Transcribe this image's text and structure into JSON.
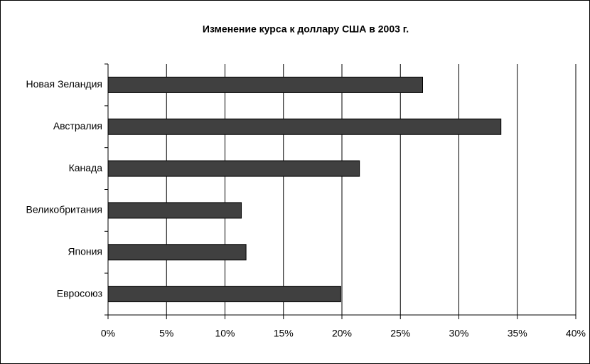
{
  "chart_data": {
    "type": "bar",
    "orientation": "horizontal",
    "title": "Изменение курса к доллару США в 2003 г.",
    "categories": [
      "Новая Зеландия",
      "Австралия",
      "Канада",
      "Великобритания",
      "Япония",
      "Евросоюз"
    ],
    "values": [
      26.9,
      33.6,
      21.5,
      11.4,
      11.8,
      19.9
    ],
    "color": "#404040",
    "xlim": [
      0,
      40
    ],
    "xticks": [
      {
        "value": 0,
        "label": "0%"
      },
      {
        "value": 5,
        "label": "5%"
      },
      {
        "value": 10,
        "label": "10%"
      },
      {
        "value": 15,
        "label": "15%"
      },
      {
        "value": 20,
        "label": "20%"
      },
      {
        "value": 25,
        "label": "25%"
      },
      {
        "value": 30,
        "label": "30%"
      },
      {
        "value": 35,
        "label": "35%"
      },
      {
        "value": 40,
        "label": "40%"
      }
    ],
    "grid": true
  }
}
